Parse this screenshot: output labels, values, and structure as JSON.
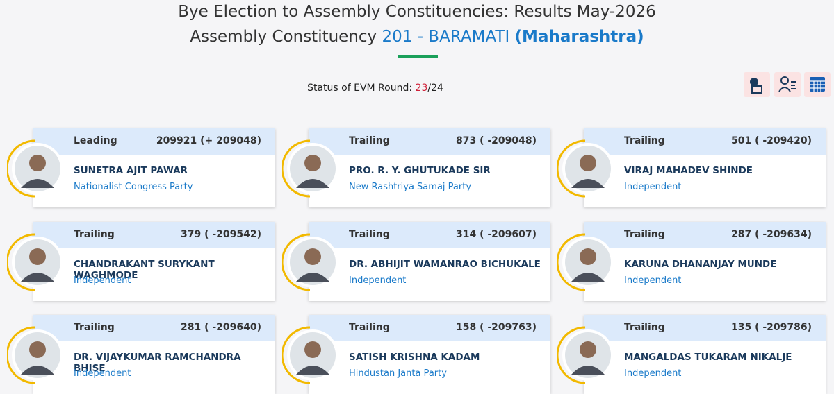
{
  "header": {
    "title": "Bye Election to Assembly Constituencies: Results May-2026",
    "constituency_prefix": "Assembly Constituency",
    "constituency": "201 - BARAMATI",
    "state": "(Maharashtra)"
  },
  "status": {
    "label": "Status of EVM Round:",
    "round": "23",
    "total": "/24"
  },
  "candidates": [
    {
      "status": "Leading",
      "votes": "209921 (+ 209048)",
      "name": "SUNETRA AJIT PAWAR",
      "party": "Nationalist Congress Party"
    },
    {
      "status": "Trailing",
      "votes": "873 ( -209048)",
      "name": "PRO. R. Y. GHUTUKADE SIR",
      "party": "New Rashtriya Samaj Party"
    },
    {
      "status": "Trailing",
      "votes": "501 ( -209420)",
      "name": "VIRAJ MAHADEV SHINDE",
      "party": "Independent"
    },
    {
      "status": "Trailing",
      "votes": "379 ( -209542)",
      "name": "CHANDRAKANT SURYKANT WAGHMODE",
      "party": "Independent"
    },
    {
      "status": "Trailing",
      "votes": "314 ( -209607)",
      "name": "DR. ABHIJIT WAMANRAO BICHUKALE",
      "party": "Independent"
    },
    {
      "status": "Trailing",
      "votes": "287 ( -209634)",
      "name": "KARUNA DHANANJAY MUNDE",
      "party": "Independent"
    },
    {
      "status": "Trailing",
      "votes": "281 ( -209640)",
      "name": "DR. VIJAYKUMAR RAMCHANDRA BHISE",
      "party": "Independent"
    },
    {
      "status": "Trailing",
      "votes": "158 ( -209763)",
      "name": "SATISH KRISHNA KADAM",
      "party": "Hindustan Janta Party"
    },
    {
      "status": "Trailing",
      "votes": "135 ( -209786)",
      "name": "MANGALDAS TUKARAM NIKALJE",
      "party": "Independent"
    }
  ]
}
